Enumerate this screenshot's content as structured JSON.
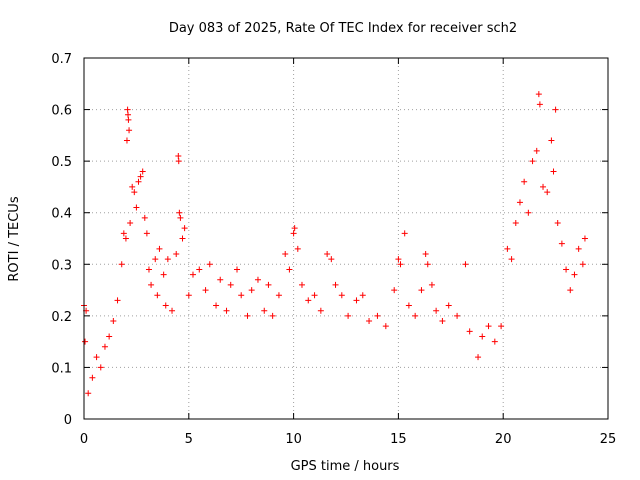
{
  "chart_data": {
    "type": "scatter",
    "title": "Day 083 of 2025, Rate Of TEC Index for receiver sch2",
    "xlabel": "GPS time / hours",
    "ylabel": "ROTI / TECUs",
    "xlim": [
      0,
      25
    ],
    "ylim": [
      0,
      0.7
    ],
    "xticks": [
      0,
      5,
      10,
      15,
      20,
      25
    ],
    "xtick_labels": [
      "0",
      "5",
      "10",
      "15",
      "20",
      "25"
    ],
    "yticks": [
      0,
      0.1,
      0.2,
      0.3,
      0.4,
      0.5,
      0.6,
      0.7
    ],
    "ytick_labels": [
      "0",
      "0.1",
      "0.2",
      "0.3",
      "0.4",
      "0.5",
      "0.6",
      "0.7"
    ],
    "grid": true,
    "grid_style": "dotted",
    "marker": "+",
    "marker_color": "#ff0000",
    "series": [
      {
        "points": [
          [
            0.0,
            0.22
          ],
          [
            0.05,
            0.15
          ],
          [
            0.1,
            0.21
          ],
          [
            0.2,
            0.05
          ],
          [
            0.4,
            0.08
          ],
          [
            0.6,
            0.12
          ],
          [
            0.8,
            0.1
          ],
          [
            1.0,
            0.14
          ],
          [
            1.2,
            0.16
          ],
          [
            1.4,
            0.19
          ],
          [
            1.6,
            0.23
          ],
          [
            1.8,
            0.3
          ],
          [
            1.9,
            0.36
          ],
          [
            2.0,
            0.35
          ],
          [
            2.05,
            0.54
          ],
          [
            2.08,
            0.6
          ],
          [
            2.1,
            0.59
          ],
          [
            2.12,
            0.58
          ],
          [
            2.15,
            0.56
          ],
          [
            2.2,
            0.38
          ],
          [
            2.3,
            0.45
          ],
          [
            2.4,
            0.44
          ],
          [
            2.5,
            0.41
          ],
          [
            2.6,
            0.46
          ],
          [
            2.7,
            0.47
          ],
          [
            2.8,
            0.48
          ],
          [
            2.9,
            0.39
          ],
          [
            3.0,
            0.36
          ],
          [
            3.1,
            0.29
          ],
          [
            3.2,
            0.26
          ],
          [
            3.4,
            0.31
          ],
          [
            3.5,
            0.24
          ],
          [
            3.6,
            0.33
          ],
          [
            3.8,
            0.28
          ],
          [
            3.9,
            0.22
          ],
          [
            4.0,
            0.31
          ],
          [
            4.2,
            0.21
          ],
          [
            4.4,
            0.32
          ],
          [
            4.5,
            0.51
          ],
          [
            4.52,
            0.5
          ],
          [
            4.55,
            0.4
          ],
          [
            4.6,
            0.39
          ],
          [
            4.7,
            0.35
          ],
          [
            4.8,
            0.37
          ],
          [
            5.0,
            0.24
          ],
          [
            5.2,
            0.28
          ],
          [
            5.5,
            0.29
          ],
          [
            5.8,
            0.25
          ],
          [
            6.0,
            0.3
          ],
          [
            6.3,
            0.22
          ],
          [
            6.5,
            0.27
          ],
          [
            6.8,
            0.21
          ],
          [
            7.0,
            0.26
          ],
          [
            7.3,
            0.29
          ],
          [
            7.5,
            0.24
          ],
          [
            7.8,
            0.2
          ],
          [
            8.0,
            0.25
          ],
          [
            8.3,
            0.27
          ],
          [
            8.6,
            0.21
          ],
          [
            8.8,
            0.26
          ],
          [
            9.0,
            0.2
          ],
          [
            9.3,
            0.24
          ],
          [
            9.6,
            0.32
          ],
          [
            9.8,
            0.29
          ],
          [
            10.0,
            0.36
          ],
          [
            10.05,
            0.37
          ],
          [
            10.2,
            0.33
          ],
          [
            10.4,
            0.26
          ],
          [
            10.7,
            0.23
          ],
          [
            11.0,
            0.24
          ],
          [
            11.3,
            0.21
          ],
          [
            11.6,
            0.32
          ],
          [
            11.8,
            0.31
          ],
          [
            12.0,
            0.26
          ],
          [
            12.3,
            0.24
          ],
          [
            12.6,
            0.2
          ],
          [
            13.0,
            0.23
          ],
          [
            13.3,
            0.24
          ],
          [
            13.6,
            0.19
          ],
          [
            14.0,
            0.2
          ],
          [
            14.4,
            0.18
          ],
          [
            14.8,
            0.25
          ],
          [
            15.0,
            0.31
          ],
          [
            15.1,
            0.3
          ],
          [
            15.3,
            0.36
          ],
          [
            15.5,
            0.22
          ],
          [
            15.8,
            0.2
          ],
          [
            16.1,
            0.25
          ],
          [
            16.3,
            0.32
          ],
          [
            16.4,
            0.3
          ],
          [
            16.6,
            0.26
          ],
          [
            16.8,
            0.21
          ],
          [
            17.1,
            0.19
          ],
          [
            17.4,
            0.22
          ],
          [
            17.8,
            0.2
          ],
          [
            18.2,
            0.3
          ],
          [
            18.4,
            0.17
          ],
          [
            18.8,
            0.12
          ],
          [
            19.0,
            0.16
          ],
          [
            19.3,
            0.18
          ],
          [
            19.6,
            0.15
          ],
          [
            19.9,
            0.18
          ],
          [
            20.2,
            0.33
          ],
          [
            20.4,
            0.31
          ],
          [
            20.6,
            0.38
          ],
          [
            20.8,
            0.42
          ],
          [
            21.0,
            0.46
          ],
          [
            21.2,
            0.4
          ],
          [
            21.4,
            0.5
          ],
          [
            21.6,
            0.52
          ],
          [
            21.7,
            0.63
          ],
          [
            21.75,
            0.61
          ],
          [
            21.9,
            0.45
          ],
          [
            22.1,
            0.44
          ],
          [
            22.3,
            0.54
          ],
          [
            22.4,
            0.48
          ],
          [
            22.5,
            0.6
          ],
          [
            22.6,
            0.38
          ],
          [
            22.8,
            0.34
          ],
          [
            23.0,
            0.29
          ],
          [
            23.2,
            0.25
          ],
          [
            23.4,
            0.28
          ],
          [
            23.6,
            0.33
          ],
          [
            23.8,
            0.3
          ],
          [
            23.9,
            0.35
          ]
        ]
      }
    ]
  }
}
